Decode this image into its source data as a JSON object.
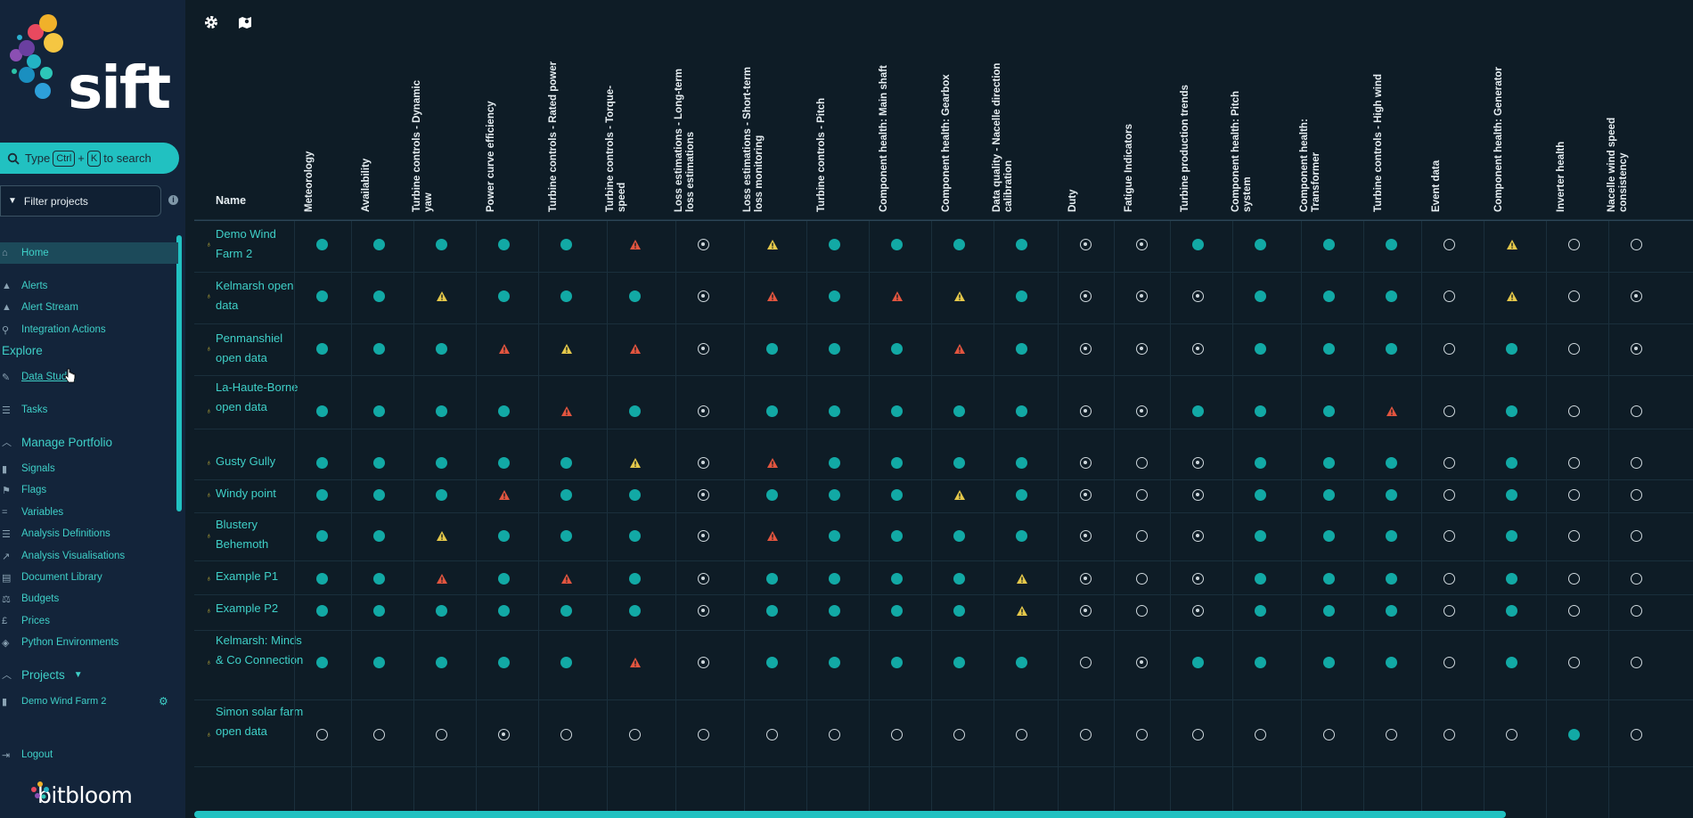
{
  "sidebar": {
    "logo_text": "sift",
    "search": {
      "prefix": "Type",
      "key1": "Ctrl",
      "plus": "+",
      "key2": "K",
      "suffix": "to search"
    },
    "filter_placeholder": "Filter projects",
    "home": "Home",
    "alerts": "Alerts",
    "alert_stream": "Alert Stream",
    "integration_actions": "Integration Actions",
    "explore": "Explore",
    "data_studio": "Data Studio",
    "tasks": "Tasks",
    "manage_portfolio": "Manage Portfolio",
    "signals": "Signals",
    "flags": "Flags",
    "variables": "Variables",
    "analysis_definitions": "Analysis Definitions",
    "analysis_visualisations": "Analysis Visualisations",
    "document_library": "Document Library",
    "budgets": "Budgets",
    "prices": "Prices",
    "python_environments": "Python Environments",
    "projects": "Projects",
    "project_item": "Demo Wind Farm 2",
    "logout": "Logout",
    "brand": "bitbloom"
  },
  "table": {
    "name_header": "Name",
    "columns": [
      "Meteorology",
      "Availability",
      "Turbine controls - Dynamic yaw",
      "Power curve efficiency",
      "Turbine controls - Rated power",
      "Turbine controls - Torque-speed",
      "Loss estimations - Long-term loss estimations",
      "Loss estimations - Short-term loss monitoring",
      "Turbine controls - Pitch",
      "Component health: Main shaft",
      "Component health: Gearbox",
      "Data quality - Nacelle direction calibration",
      "Duty",
      "Fatigue Indicators",
      "Turbine production trends",
      "Component health: Pitch system",
      "Component health: Transformer",
      "Turbine controls - High wind",
      "Event data",
      "Component health: Generator",
      "Inverter health",
      "Nacelle wind speed consistency"
    ],
    "rows": [
      {
        "name": "Demo Wind Farm 2",
        "status": [
          "ok",
          "ok",
          "ok",
          "ok",
          "ok",
          "err",
          "na",
          "warn",
          "ok",
          "ok",
          "ok",
          "ok",
          "na",
          "na",
          "ok",
          "ok",
          "ok",
          "ok",
          "empty",
          "warn",
          "empty",
          "empty"
        ]
      },
      {
        "name": "Kelmarsh open data",
        "status": [
          "ok",
          "ok",
          "warn",
          "ok",
          "ok",
          "ok",
          "na",
          "err",
          "ok",
          "err",
          "warn",
          "ok",
          "na",
          "na",
          "na",
          "ok",
          "ok",
          "ok",
          "empty",
          "warn",
          "empty",
          "na"
        ]
      },
      {
        "name": "Penmanshiel open data",
        "status": [
          "ok",
          "ok",
          "ok",
          "err",
          "warn",
          "err",
          "na",
          "ok",
          "ok",
          "ok",
          "err",
          "ok",
          "na",
          "na",
          "na",
          "ok",
          "ok",
          "ok",
          "empty",
          "ok",
          "empty",
          "na"
        ]
      },
      {
        "name": "La-Haute-Borne open data",
        "status": [
          "ok",
          "ok",
          "ok",
          "ok",
          "err",
          "ok",
          "na",
          "ok",
          "ok",
          "ok",
          "ok",
          "ok",
          "na",
          "na",
          "ok",
          "ok",
          "ok",
          "err",
          "empty",
          "ok",
          "empty",
          "empty"
        ]
      },
      {
        "name": "Gusty Gully",
        "status": [
          "ok",
          "ok",
          "ok",
          "ok",
          "ok",
          "warn",
          "na",
          "err",
          "ok",
          "ok",
          "ok",
          "ok",
          "na",
          "empty",
          "na",
          "ok",
          "ok",
          "ok",
          "empty",
          "ok",
          "empty",
          "empty"
        ]
      },
      {
        "name": "Windy point",
        "status": [
          "ok",
          "ok",
          "ok",
          "err",
          "ok",
          "ok",
          "na",
          "ok",
          "ok",
          "ok",
          "warn",
          "ok",
          "na",
          "empty",
          "na",
          "ok",
          "ok",
          "ok",
          "empty",
          "ok",
          "empty",
          "empty"
        ]
      },
      {
        "name": "Blustery Behemoth",
        "status": [
          "ok",
          "ok",
          "warn",
          "ok",
          "ok",
          "ok",
          "na",
          "err",
          "ok",
          "ok",
          "ok",
          "ok",
          "na",
          "empty",
          "na",
          "ok",
          "ok",
          "ok",
          "empty",
          "ok",
          "empty",
          "empty"
        ]
      },
      {
        "name": "Example P1",
        "status": [
          "ok",
          "ok",
          "err",
          "ok",
          "err",
          "ok",
          "na",
          "ok",
          "ok",
          "ok",
          "ok",
          "warn",
          "na",
          "empty",
          "na",
          "ok",
          "ok",
          "ok",
          "empty",
          "ok",
          "empty",
          "empty"
        ]
      },
      {
        "name": "Example P2",
        "status": [
          "ok",
          "ok",
          "ok",
          "ok",
          "ok",
          "ok",
          "na",
          "ok",
          "ok",
          "ok",
          "ok",
          "warn",
          "na",
          "empty",
          "na",
          "ok",
          "ok",
          "ok",
          "empty",
          "ok",
          "empty",
          "empty"
        ]
      },
      {
        "name": "Kelmarsh: Minds & Co Connection",
        "status": [
          "ok",
          "ok",
          "ok",
          "ok",
          "ok",
          "err",
          "na",
          "ok",
          "ok",
          "ok",
          "ok",
          "ok",
          "empty",
          "na",
          "ok",
          "ok",
          "ok",
          "ok",
          "empty",
          "ok",
          "empty",
          "empty"
        ]
      },
      {
        "name": "Simon solar farm open data",
        "status": [
          "empty",
          "empty",
          "empty",
          "na",
          "empty",
          "empty",
          "empty",
          "empty",
          "empty",
          "empty",
          "empty",
          "empty",
          "empty",
          "empty",
          "empty",
          "empty",
          "empty",
          "empty",
          "empty",
          "empty",
          "ok",
          "empty"
        ]
      }
    ]
  },
  "colors": {
    "ok": "#12a9a5",
    "warn": "#e5c84a",
    "err": "#e2553f",
    "accent": "#21c1c1"
  }
}
